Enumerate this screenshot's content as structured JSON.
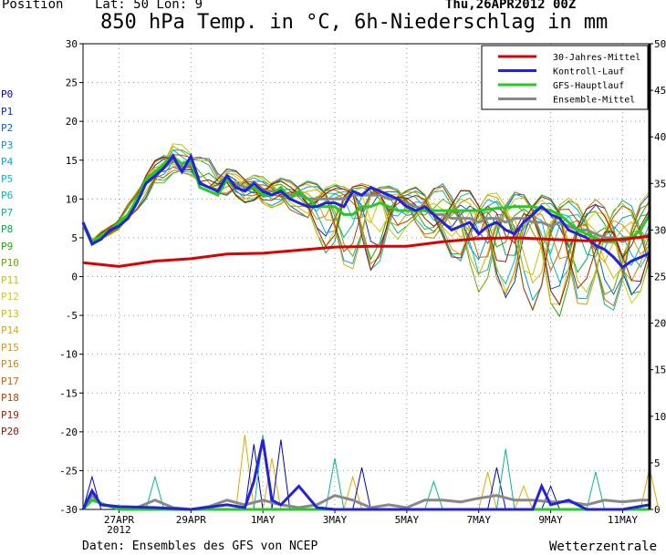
{
  "header": {
    "position_label": "Position",
    "location": "Lat: 50 Lon: 9",
    "run": "Thu,26APR2012 00Z",
    "title": "850 hPa Temp. in °C, 6h-Niederschlag in mm"
  },
  "footer": {
    "source": "Daten: Ensembles des GFS von NCEP",
    "brand": "Wetterzentrale"
  },
  "members": [
    {
      "label": "P0",
      "color": "#0000cc"
    },
    {
      "label": "P1",
      "color": "#0033cc"
    },
    {
      "label": "P2",
      "color": "#0066dd"
    },
    {
      "label": "P3",
      "color": "#0099dd"
    },
    {
      "label": "P4",
      "color": "#00aadd"
    },
    {
      "label": "P5",
      "color": "#00bbcc"
    },
    {
      "label": "P6",
      "color": "#00bbaa"
    },
    {
      "label": "P7",
      "color": "#00bb88"
    },
    {
      "label": "P8",
      "color": "#00aa44"
    },
    {
      "label": "P9",
      "color": "#22aa00"
    },
    {
      "label": "P10",
      "color": "#66aa00"
    },
    {
      "label": "P11",
      "color": "#bbcc00"
    },
    {
      "label": "P12",
      "color": "#ddcc00"
    },
    {
      "label": "P13",
      "color": "#ddbb00"
    },
    {
      "label": "P14",
      "color": "#ddaa00"
    },
    {
      "label": "P15",
      "color": "#dd9900"
    },
    {
      "label": "P16",
      "color": "#cc8800"
    },
    {
      "label": "P17",
      "color": "#cc6600"
    },
    {
      "label": "P18",
      "color": "#bb4400"
    },
    {
      "label": "P19",
      "color": "#aa2200"
    },
    {
      "label": "P20",
      "color": "#991100"
    }
  ],
  "chart_data": {
    "type": "line",
    "x_unit": "6h steps from 26APR2012 00Z",
    "xlim": [
      0,
      63
    ],
    "ylim_left": [
      -30,
      30
    ],
    "ylim_right": [
      0,
      50
    ],
    "y_ticks_left": [
      30,
      25,
      20,
      15,
      10,
      5,
      0,
      -5,
      -10,
      -15,
      -20,
      -25,
      -30
    ],
    "y_ticks_right": [
      50,
      45,
      40,
      35,
      30,
      25,
      20,
      15,
      10,
      5,
      0
    ],
    "x_ticks": [
      {
        "x": 4,
        "label": "27APR",
        "sub": "2012"
      },
      {
        "x": 12,
        "label": "29APR",
        "sub": ""
      },
      {
        "x": 20,
        "label": "1MAY",
        "sub": ""
      },
      {
        "x": 28,
        "label": "3MAY",
        "sub": ""
      },
      {
        "x": 36,
        "label": "5MAY",
        "sub": ""
      },
      {
        "x": 44,
        "label": "7MAY",
        "sub": ""
      },
      {
        "x": 52,
        "label": "9MAY",
        "sub": ""
      },
      {
        "x": 60,
        "label": "11MAY",
        "sub": ""
      }
    ],
    "grid": true,
    "legend_position": "top-right",
    "legend": [
      {
        "name": "30-Jahres-Mittel",
        "color": "#dd0000"
      },
      {
        "name": "Kontroll-Lauf",
        "color": "#2222dd"
      },
      {
        "name": "GFS-Hauptlauf",
        "color": "#22cc22"
      },
      {
        "name": "Ensemble-Mittel",
        "color": "#888888"
      }
    ],
    "series": [
      {
        "name": "30-Jahres-Mittel",
        "color": "#dd0000",
        "width": 3,
        "points": [
          [
            0,
            1.8
          ],
          [
            4,
            1.3
          ],
          [
            8,
            2.0
          ],
          [
            12,
            2.3
          ],
          [
            16,
            2.9
          ],
          [
            20,
            3.0
          ],
          [
            24,
            3.4
          ],
          [
            28,
            3.8
          ],
          [
            32,
            3.9
          ],
          [
            36,
            3.9
          ],
          [
            40,
            4.5
          ],
          [
            44,
            4.9
          ],
          [
            48,
            5.0
          ],
          [
            52,
            4.8
          ],
          [
            56,
            4.6
          ],
          [
            60,
            4.8
          ],
          [
            63,
            5.2
          ]
        ]
      },
      {
        "name": "Kontroll-Lauf",
        "color": "#2222dd",
        "width": 3,
        "points": [
          [
            0,
            7
          ],
          [
            1,
            4.2
          ],
          [
            2,
            4.8
          ],
          [
            3,
            6
          ],
          [
            4,
            6.5
          ],
          [
            5,
            7.5
          ],
          [
            6,
            9.5
          ],
          [
            7,
            12
          ],
          [
            8,
            13
          ],
          [
            9,
            14
          ],
          [
            10,
            15.5
          ],
          [
            11,
            13.5
          ],
          [
            12,
            15.5
          ],
          [
            13,
            12
          ],
          [
            14,
            11.5
          ],
          [
            15,
            11
          ],
          [
            16,
            13
          ],
          [
            17,
            11.5
          ],
          [
            18,
            11
          ],
          [
            19,
            12
          ],
          [
            20,
            11
          ],
          [
            21,
            10.5
          ],
          [
            22,
            11
          ],
          [
            23,
            10
          ],
          [
            24,
            9.5
          ],
          [
            25,
            9
          ],
          [
            26,
            9
          ],
          [
            27,
            9.5
          ],
          [
            28,
            9.5
          ],
          [
            29,
            9
          ],
          [
            30,
            11
          ],
          [
            31,
            10.5
          ],
          [
            32,
            11.5
          ],
          [
            33,
            11
          ],
          [
            34,
            10.5
          ],
          [
            35,
            10
          ],
          [
            36,
            9
          ],
          [
            37,
            8.5
          ],
          [
            38,
            9
          ],
          [
            39,
            8
          ],
          [
            40,
            7
          ],
          [
            41,
            6
          ],
          [
            42,
            6.5
          ],
          [
            43,
            7
          ],
          [
            44,
            5.5
          ],
          [
            45,
            6.5
          ],
          [
            46,
            7
          ],
          [
            47,
            6
          ],
          [
            48,
            5.5
          ],
          [
            49,
            7
          ],
          [
            50,
            8
          ],
          [
            51,
            9
          ],
          [
            52,
            8
          ],
          [
            53,
            7.5
          ],
          [
            54,
            6
          ],
          [
            55,
            5.5
          ],
          [
            56,
            5
          ],
          [
            57,
            4
          ],
          [
            58,
            3.5
          ],
          [
            59,
            2.5
          ],
          [
            60,
            1.2
          ],
          [
            61,
            2
          ],
          [
            62,
            2.5
          ],
          [
            63,
            3
          ]
        ]
      },
      {
        "name": "GFS-Hauptlauf",
        "color": "#22cc22",
        "width": 3,
        "points": [
          [
            0,
            7
          ],
          [
            1,
            4.5
          ],
          [
            2,
            5.2
          ],
          [
            3,
            6
          ],
          [
            4,
            7
          ],
          [
            5,
            8
          ],
          [
            6,
            10
          ],
          [
            7,
            12.5
          ],
          [
            8,
            13.5
          ],
          [
            9,
            14.5
          ],
          [
            10,
            15.5
          ],
          [
            11,
            14.5
          ],
          [
            12,
            15
          ],
          [
            13,
            11.5
          ],
          [
            14,
            11
          ],
          [
            15,
            10.5
          ],
          [
            16,
            12.5
          ],
          [
            17,
            11.5
          ],
          [
            18,
            11
          ],
          [
            19,
            11.5
          ],
          [
            20,
            10.5
          ],
          [
            21,
            10.5
          ],
          [
            22,
            11.5
          ],
          [
            23,
            10
          ],
          [
            24,
            11
          ],
          [
            25,
            10
          ],
          [
            26,
            9
          ],
          [
            27,
            9
          ],
          [
            28,
            9
          ],
          [
            29,
            8
          ],
          [
            30,
            8
          ],
          [
            31,
            9
          ],
          [
            32,
            9
          ],
          [
            33,
            9.5
          ],
          [
            34,
            9
          ],
          [
            35,
            8.5
          ],
          [
            36,
            8.5
          ],
          [
            38,
            8.5
          ],
          [
            40,
            8.5
          ],
          [
            42,
            8.5
          ],
          [
            44,
            8.5
          ],
          [
            46,
            8.8
          ],
          [
            48,
            9
          ],
          [
            50,
            9
          ],
          [
            52,
            8.5
          ],
          [
            53,
            8
          ],
          [
            54,
            7
          ],
          [
            55,
            6
          ],
          [
            56,
            5.5
          ],
          [
            57,
            5
          ],
          [
            58,
            4.5
          ],
          [
            59,
            4.5
          ],
          [
            60,
            5
          ],
          [
            61,
            5
          ],
          [
            62,
            6
          ],
          [
            63,
            8
          ]
        ]
      },
      {
        "name": "Ensemble-Mittel",
        "color": "#888888",
        "width": 3,
        "points": [
          [
            0,
            6.8
          ],
          [
            1,
            4.2
          ],
          [
            2,
            5
          ],
          [
            3,
            6
          ],
          [
            4,
            7
          ],
          [
            5,
            8
          ],
          [
            6,
            10
          ],
          [
            7,
            12.5
          ],
          [
            8,
            13.5
          ],
          [
            9,
            14
          ],
          [
            10,
            15
          ],
          [
            11,
            14
          ],
          [
            12,
            14.5
          ],
          [
            13,
            12
          ],
          [
            14,
            11.5
          ],
          [
            15,
            11
          ],
          [
            16,
            12.5
          ],
          [
            17,
            12
          ],
          [
            18,
            11.5
          ],
          [
            19,
            11.5
          ],
          [
            20,
            11
          ],
          [
            21,
            11
          ],
          [
            22,
            11
          ],
          [
            23,
            10.5
          ],
          [
            24,
            10.5
          ],
          [
            25,
            10
          ],
          [
            26,
            10
          ],
          [
            27,
            10
          ],
          [
            28,
            10
          ],
          [
            29,
            10
          ],
          [
            30,
            10.5
          ],
          [
            31,
            10.5
          ],
          [
            32,
            10.5
          ],
          [
            33,
            10.5
          ],
          [
            34,
            10
          ],
          [
            35,
            10
          ],
          [
            36,
            9.5
          ],
          [
            37,
            9
          ],
          [
            38,
            8.5
          ],
          [
            39,
            8
          ],
          [
            40,
            8
          ],
          [
            41,
            7.5
          ],
          [
            42,
            7.5
          ],
          [
            43,
            7.5
          ],
          [
            44,
            7
          ],
          [
            45,
            7.5
          ],
          [
            46,
            7.5
          ],
          [
            47,
            7
          ],
          [
            48,
            7.5
          ],
          [
            49,
            7.5
          ],
          [
            50,
            7
          ],
          [
            51,
            7
          ],
          [
            52,
            6.5
          ],
          [
            53,
            7
          ],
          [
            54,
            6.5
          ],
          [
            55,
            6
          ],
          [
            56,
            6
          ],
          [
            57,
            5.5
          ],
          [
            58,
            5
          ],
          [
            59,
            5
          ],
          [
            60,
            4.5
          ],
          [
            61,
            5
          ],
          [
            62,
            5
          ],
          [
            63,
            5.5
          ]
        ]
      }
    ],
    "member_spread": {
      "note": "thin lines P1..P20 approximate ensemble scatter",
      "bands": [
        [
          0,
          7,
          7
        ],
        [
          1,
          4,
          5
        ],
        [
          4,
          6,
          7.5
        ],
        [
          8,
          11,
          15
        ],
        [
          10,
          13,
          17.5
        ],
        [
          12,
          13,
          16.5
        ],
        [
          16,
          10,
          14
        ],
        [
          20,
          9,
          13
        ],
        [
          24,
          8,
          12.5
        ],
        [
          28,
          1,
          12
        ],
        [
          32,
          0,
          12
        ],
        [
          36,
          6,
          11.5
        ],
        [
          40,
          4,
          12
        ],
        [
          44,
          -2,
          11
        ],
        [
          48,
          -3,
          11
        ],
        [
          52,
          -6,
          10.5
        ],
        [
          56,
          -4,
          10
        ],
        [
          60,
          -5,
          10
        ],
        [
          63,
          -2,
          11
        ]
      ]
    },
    "precip_mean": [
      [
        0,
        0
      ],
      [
        1,
        1.5
      ],
      [
        2,
        0.5
      ],
      [
        4,
        0.2
      ],
      [
        6,
        0.2
      ],
      [
        8,
        1
      ],
      [
        10,
        0.2
      ],
      [
        12,
        0
      ],
      [
        14,
        0.3
      ],
      [
        16,
        1
      ],
      [
        18,
        0.5
      ],
      [
        20,
        1
      ],
      [
        22,
        0.5
      ],
      [
        24,
        0.2
      ],
      [
        26,
        0.5
      ],
      [
        28,
        1.5
      ],
      [
        30,
        1
      ],
      [
        32,
        0.2
      ],
      [
        34,
        0.5
      ],
      [
        36,
        0.2
      ],
      [
        38,
        1
      ],
      [
        40,
        1
      ],
      [
        42,
        0.8
      ],
      [
        44,
        1.2
      ],
      [
        46,
        1.5
      ],
      [
        48,
        1
      ],
      [
        50,
        1
      ],
      [
        52,
        0.8
      ],
      [
        54,
        0.8
      ],
      [
        56,
        0.5
      ],
      [
        58,
        1
      ],
      [
        60,
        0.8
      ],
      [
        62,
        1
      ],
      [
        63,
        1
      ]
    ],
    "precip_control": [
      [
        0,
        0
      ],
      [
        1,
        2
      ],
      [
        2,
        0.5
      ],
      [
        4,
        0.3
      ],
      [
        8,
        0.2
      ],
      [
        12,
        0
      ],
      [
        16,
        0.5
      ],
      [
        18,
        0.2
      ],
      [
        19,
        3
      ],
      [
        20,
        7.5
      ],
      [
        21,
        1
      ],
      [
        22,
        0.5
      ],
      [
        24,
        2.5
      ],
      [
        26,
        0.2
      ],
      [
        28,
        0
      ],
      [
        36,
        0
      ],
      [
        44,
        0
      ],
      [
        48,
        0
      ],
      [
        50,
        0
      ],
      [
        51,
        2.5
      ],
      [
        52,
        0.5
      ],
      [
        54,
        1
      ],
      [
        56,
        0
      ],
      [
        60,
        0
      ],
      [
        63,
        0.5
      ]
    ],
    "precip_gfs": [
      [
        0,
        0
      ],
      [
        1,
        1
      ],
      [
        4,
        0
      ],
      [
        8,
        0
      ],
      [
        12,
        0
      ],
      [
        20,
        0
      ],
      [
        28,
        0
      ],
      [
        36,
        0
      ],
      [
        44,
        0
      ],
      [
        52,
        0
      ],
      [
        60,
        0
      ],
      [
        63,
        0
      ]
    ],
    "precip_member_peaks": [
      [
        1,
        3.5
      ],
      [
        8,
        3.5
      ],
      [
        18,
        8
      ],
      [
        19,
        7
      ],
      [
        20,
        8
      ],
      [
        21,
        5.5
      ],
      [
        22,
        7.5
      ],
      [
        28,
        5.5
      ],
      [
        30,
        3.5
      ],
      [
        31,
        4.5
      ],
      [
        39,
        3
      ],
      [
        45,
        4
      ],
      [
        46,
        4.5
      ],
      [
        47,
        6.5
      ],
      [
        49,
        2.5
      ],
      [
        52,
        2.5
      ],
      [
        57,
        4
      ],
      [
        63,
        4.5
      ]
    ]
  }
}
